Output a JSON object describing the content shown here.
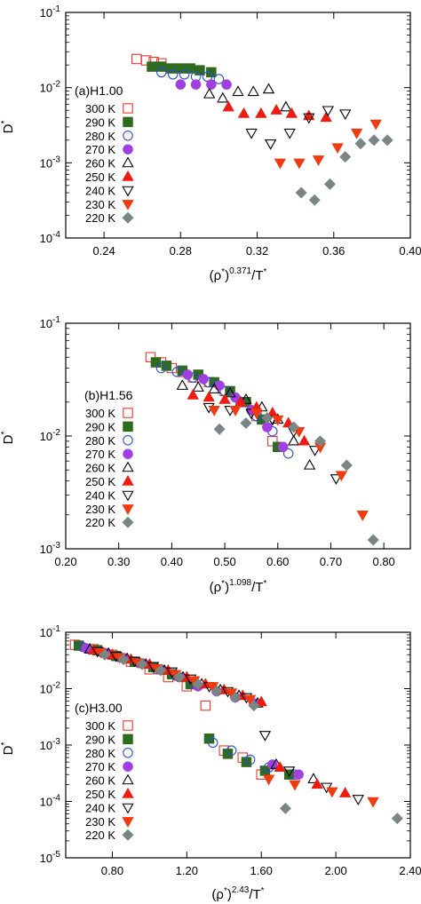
{
  "figure": {
    "panels": [
      {
        "panel_label": "(a)H1.00",
        "ylabel": "D*",
        "xlabel": "(ρ*)^0.371/T*",
        "xlabel_base": "(ρ",
        "xlabel_star": "*",
        "xlabel_exp": "0.371",
        "xlabel_tail": "/T",
        "xlabel_tail_star": "*"
      },
      {
        "panel_label": "(b)H1.56",
        "ylabel": "D*",
        "xlabel": "(ρ*)^1.098/T*",
        "xlabel_base": "(ρ",
        "xlabel_star": "*",
        "xlabel_exp": "1.098",
        "xlabel_tail": "/T",
        "xlabel_tail_star": "*"
      },
      {
        "panel_label": "(c)H3.00",
        "ylabel": "D*",
        "xlabel": "(ρ*)^2.43/T*",
        "xlabel_base": "(ρ",
        "xlabel_star": "*",
        "xlabel_exp": "2.43",
        "xlabel_tail": "/T",
        "xlabel_tail_star": "*"
      }
    ]
  },
  "chart_data": [
    {
      "type": "scatter",
      "title": "(a)H1.00",
      "xlabel": "(ρ*)^0.371/T*",
      "ylabel": "D*",
      "xlim": [
        0.22,
        0.4
      ],
      "ylim": [
        0.0001,
        0.1
      ],
      "yscale": "log",
      "xticks": [
        "0.24",
        "0.28",
        "0.32",
        "0.36",
        "0.40"
      ],
      "yticks": [
        "10^-4",
        "10^-3",
        "10^-2",
        "10^-1"
      ],
      "legend_position": "left",
      "series": [
        {
          "name": "300 K",
          "color": "#e8392d",
          "marker": "square-open",
          "x": [
            0.257,
            0.262,
            0.266,
            0.27
          ],
          "y": [
            0.024,
            0.023,
            0.022,
            0.021
          ]
        },
        {
          "name": "290 K",
          "color": "#2e6b1e",
          "marker": "square-filled",
          "x": [
            0.265,
            0.27,
            0.275,
            0.28,
            0.285,
            0.29,
            0.296
          ],
          "y": [
            0.019,
            0.019,
            0.018,
            0.018,
            0.018,
            0.017,
            0.016
          ]
        },
        {
          "name": "280 K",
          "color": "#2a4fd6",
          "marker": "circle-open",
          "x": [
            0.27,
            0.276,
            0.282,
            0.288,
            0.294,
            0.3
          ],
          "y": [
            0.016,
            0.015,
            0.015,
            0.014,
            0.014,
            0.013
          ]
        },
        {
          "name": "270 K",
          "color": "#a040e0",
          "marker": "circle-filled",
          "x": [
            0.28,
            0.288,
            0.296,
            0.304
          ],
          "y": [
            0.011,
            0.011,
            0.011,
            0.011
          ]
        },
        {
          "name": "260 K",
          "color": "#000000",
          "marker": "triangle-up-open",
          "x": [
            0.295,
            0.302,
            0.31,
            0.318,
            0.326,
            0.335
          ],
          "y": [
            0.0082,
            0.0072,
            0.0088,
            0.0088,
            0.0095,
            0.0055
          ]
        },
        {
          "name": "250 K",
          "color": "#f01a10",
          "marker": "triangle-up-filled",
          "x": [
            0.305,
            0.313,
            0.322,
            0.33,
            0.338,
            0.347,
            0.356
          ],
          "y": [
            0.0055,
            0.0045,
            0.0045,
            0.005,
            0.0045,
            0.0042,
            0.004
          ]
        },
        {
          "name": "240 K",
          "color": "#000000",
          "marker": "triangle-down-open",
          "x": [
            0.317,
            0.327,
            0.337,
            0.347,
            0.357,
            0.366
          ],
          "y": [
            0.0025,
            0.0018,
            0.0025,
            0.004,
            0.005,
            0.0045
          ]
        },
        {
          "name": "230 K",
          "color": "#f03b10",
          "marker": "triangle-down-filled",
          "x": [
            0.332,
            0.342,
            0.352,
            0.362,
            0.372,
            0.382
          ],
          "y": [
            0.001,
            0.001,
            0.0011,
            0.0016,
            0.0025,
            0.0033
          ]
        },
        {
          "name": "220 K",
          "color": "#7a8585",
          "marker": "diamond-filled",
          "x": [
            0.343,
            0.35,
            0.358,
            0.366,
            0.374,
            0.381,
            0.388
          ],
          "y": [
            0.0004,
            0.00032,
            0.00052,
            0.0012,
            0.0018,
            0.002,
            0.002
          ]
        }
      ]
    },
    {
      "type": "scatter",
      "title": "(b)H1.56",
      "xlabel": "(ρ*)^1.098/T*",
      "ylabel": "D*",
      "xlim": [
        0.2,
        0.85
      ],
      "ylim": [
        0.001,
        0.1
      ],
      "yscale": "log",
      "xticks": [
        "0.20",
        "0.30",
        "0.40",
        "0.50",
        "0.60",
        "0.70",
        "0.80"
      ],
      "yticks": [
        "10^-3",
        "10^-2",
        "10^-1"
      ],
      "legend_position": "left",
      "series": [
        {
          "name": "300 K",
          "color": "#e8392d",
          "marker": "square-open",
          "x": [
            0.36,
            0.38,
            0.4,
            0.42,
            0.44,
            0.47,
            0.5,
            0.53,
            0.56,
            0.59
          ],
          "y": [
            0.05,
            0.045,
            0.04,
            0.037,
            0.033,
            0.03,
            0.025,
            0.02,
            0.015,
            0.009
          ]
        },
        {
          "name": "290 K",
          "color": "#2e6b1e",
          "marker": "square-filled",
          "x": [
            0.37,
            0.39,
            0.42,
            0.45,
            0.48,
            0.51,
            0.54,
            0.57,
            0.6
          ],
          "y": [
            0.045,
            0.042,
            0.038,
            0.035,
            0.03,
            0.025,
            0.02,
            0.014,
            0.008
          ]
        },
        {
          "name": "280 K",
          "color": "#2a4fd6",
          "marker": "circle-open",
          "x": [
            0.38,
            0.41,
            0.44,
            0.47,
            0.5,
            0.53,
            0.56,
            0.59,
            0.62
          ],
          "y": [
            0.04,
            0.037,
            0.033,
            0.03,
            0.025,
            0.02,
            0.015,
            0.011,
            0.007
          ]
        },
        {
          "name": "270 K",
          "color": "#a040e0",
          "marker": "circle-filled",
          "x": [
            0.43,
            0.46,
            0.49,
            0.52,
            0.55,
            0.58,
            0.61
          ],
          "y": [
            0.035,
            0.032,
            0.028,
            0.022,
            0.017,
            0.012,
            0.008
          ]
        },
        {
          "name": "260 K",
          "color": "#000000",
          "marker": "triangle-up-open",
          "x": [
            0.42,
            0.45,
            0.48,
            0.51,
            0.54,
            0.57,
            0.6,
            0.63,
            0.66
          ],
          "y": [
            0.028,
            0.027,
            0.026,
            0.024,
            0.021,
            0.018,
            0.014,
            0.009,
            0.0055
          ]
        },
        {
          "name": "250 K",
          "color": "#f01a10",
          "marker": "triangle-up-filled",
          "x": [
            0.44,
            0.47,
            0.5,
            0.53,
            0.56,
            0.59,
            0.62,
            0.65
          ],
          "y": [
            0.023,
            0.022,
            0.021,
            0.02,
            0.018,
            0.016,
            0.013,
            0.009
          ]
        },
        {
          "name": "240 K",
          "color": "#000000",
          "marker": "triangle-down-open",
          "x": [
            0.47,
            0.51,
            0.55,
            0.59,
            0.63,
            0.67,
            0.71
          ],
          "y": [
            0.018,
            0.017,
            0.016,
            0.014,
            0.011,
            0.0075,
            0.0042
          ]
        },
        {
          "name": "230 K",
          "color": "#f03b10",
          "marker": "triangle-down-filled",
          "x": [
            0.48,
            0.52,
            0.56,
            0.6,
            0.64,
            0.68,
            0.72,
            0.76
          ],
          "y": [
            0.017,
            0.017,
            0.016,
            0.014,
            0.011,
            0.008,
            0.0045,
            0.002
          ]
        },
        {
          "name": "220 K",
          "color": "#7a8585",
          "marker": "diamond-filled",
          "x": [
            0.49,
            0.54,
            0.58,
            0.63,
            0.68,
            0.73,
            0.78
          ],
          "y": [
            0.0115,
            0.013,
            0.0145,
            0.012,
            0.009,
            0.0055,
            0.0012
          ]
        }
      ]
    },
    {
      "type": "scatter",
      "title": "(c)H3.00",
      "xlabel": "(ρ*)^2.43/T*",
      "ylabel": "D*",
      "xlim": [
        0.55,
        2.4
      ],
      "ylim": [
        1e-05,
        0.1
      ],
      "yscale": "log",
      "xticks": [
        "0.80",
        "1.20",
        "1.60",
        "2.00",
        "2.40"
      ],
      "yticks": [
        "10^-5",
        "10^-4",
        "10^-3",
        "10^-2",
        "10^-1"
      ],
      "legend_position": "left",
      "series": [
        {
          "name": "300 K",
          "color": "#e8392d",
          "marker": "square-open",
          "x": [
            0.6,
            0.7,
            0.8,
            0.9,
            1.0,
            1.1,
            1.2,
            1.3,
            1.4,
            1.5,
            1.6
          ],
          "y": [
            0.06,
            0.05,
            0.04,
            0.03,
            0.022,
            0.016,
            0.011,
            0.005,
            0.0008,
            0.0006,
            0.0003
          ]
        },
        {
          "name": "290 K",
          "color": "#2e6b1e",
          "marker": "square-filled",
          "x": [
            0.62,
            0.72,
            0.82,
            0.92,
            1.02,
            1.12,
            1.22,
            1.32,
            1.42,
            1.52,
            1.62,
            1.75
          ],
          "y": [
            0.058,
            0.048,
            0.038,
            0.03,
            0.024,
            0.018,
            0.012,
            0.0013,
            0.0007,
            0.0005,
            0.00035,
            0.0003
          ]
        },
        {
          "name": "280 K",
          "color": "#2a4fd6",
          "marker": "circle-open",
          "x": [
            0.64,
            0.74,
            0.84,
            0.94,
            1.04,
            1.14,
            1.24,
            1.34,
            1.44,
            1.54,
            1.64,
            1.78
          ],
          "y": [
            0.055,
            0.045,
            0.036,
            0.029,
            0.022,
            0.017,
            0.012,
            0.0011,
            0.0008,
            0.00055,
            0.0004,
            0.0003
          ]
        },
        {
          "name": "270 K",
          "color": "#a040e0",
          "marker": "circle-filled",
          "x": [
            0.66,
            0.76,
            0.86,
            0.96,
            1.06,
            1.16,
            1.26,
            1.36,
            1.46,
            1.56,
            1.66,
            1.8
          ],
          "y": [
            0.052,
            0.043,
            0.035,
            0.028,
            0.022,
            0.016,
            0.011,
            0.009,
            0.007,
            0.0055,
            0.00045,
            0.0003
          ]
        },
        {
          "name": "260 K",
          "color": "#000000",
          "marker": "triangle-up-open",
          "x": [
            0.68,
            0.78,
            0.88,
            0.98,
            1.08,
            1.18,
            1.28,
            1.38,
            1.48,
            1.58,
            1.68,
            1.88
          ],
          "y": [
            0.05,
            0.042,
            0.034,
            0.027,
            0.021,
            0.016,
            0.012,
            0.0095,
            0.0075,
            0.0055,
            0.00045,
            0.00025
          ]
        },
        {
          "name": "250 K",
          "color": "#f01a10",
          "marker": "triangle-up-filled",
          "x": [
            0.7,
            0.8,
            0.9,
            1.0,
            1.1,
            1.2,
            1.3,
            1.4,
            1.5,
            1.6,
            1.7,
            1.9,
            2.05
          ],
          "y": [
            0.048,
            0.04,
            0.033,
            0.027,
            0.021,
            0.016,
            0.012,
            0.0095,
            0.0075,
            0.0058,
            0.0004,
            0.0002,
            0.00014
          ]
        },
        {
          "name": "240 K",
          "color": "#000000",
          "marker": "triangle-down-open",
          "x": [
            0.72,
            0.82,
            0.92,
            1.02,
            1.12,
            1.22,
            1.32,
            1.42,
            1.52,
            1.62,
            1.75,
            1.95,
            2.12
          ],
          "y": [
            0.046,
            0.038,
            0.031,
            0.025,
            0.02,
            0.015,
            0.011,
            0.009,
            0.007,
            0.0015,
            0.00035,
            0.00018,
            0.00011
          ]
        },
        {
          "name": "230 K",
          "color": "#f03b10",
          "marker": "triangle-down-filled",
          "x": [
            0.74,
            0.84,
            0.94,
            1.04,
            1.14,
            1.24,
            1.34,
            1.44,
            1.54,
            1.64,
            1.78,
            1.98,
            2.2
          ],
          "y": [
            0.044,
            0.036,
            0.029,
            0.023,
            0.018,
            0.014,
            0.011,
            0.0085,
            0.0065,
            0.00025,
            0.0002,
            0.00015,
            0.0001
          ]
        },
        {
          "name": "220 K",
          "color": "#7a8585",
          "marker": "diamond-filled",
          "x": [
            0.76,
            0.86,
            0.96,
            1.06,
            1.16,
            1.26,
            1.36,
            1.46,
            1.56,
            1.73,
            2.33
          ],
          "y": [
            0.04,
            0.033,
            0.027,
            0.021,
            0.016,
            0.012,
            0.009,
            0.007,
            0.005,
            7.5e-05,
            5e-05
          ]
        }
      ]
    }
  ]
}
